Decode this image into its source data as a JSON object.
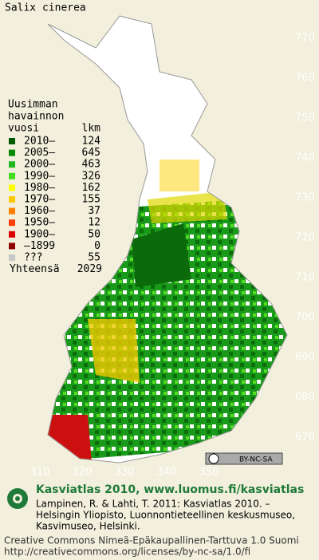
{
  "title": "Salix cinerea",
  "legend": {
    "heading": [
      "Uusimman",
      "havainnon"
    ],
    "columns": [
      "vuosi",
      "lkm"
    ],
    "rows": [
      {
        "label": "2010–",
        "count": 124,
        "color": "#005a00"
      },
      {
        "label": "2005–",
        "count": 645,
        "color": "#008a00"
      },
      {
        "label": "2000–",
        "count": 463,
        "color": "#22b822"
      },
      {
        "label": "1990–",
        "count": 326,
        "color": "#44dd22"
      },
      {
        "label": "1980–",
        "count": 162,
        "color": "#ffff00"
      },
      {
        "label": "1970–",
        "count": 155,
        "color": "#ffc800"
      },
      {
        "label": "1960–",
        "count": 37,
        "color": "#ff8000"
      },
      {
        "label": "1950–",
        "count": 12,
        "color": "#ff4000"
      },
      {
        "label": "1900–",
        "count": 50,
        "color": "#dd0000"
      },
      {
        "label": "–1899",
        "count": 0,
        "color": "#8b0000"
      },
      {
        "label": "???",
        "count": 55,
        "color": "#c8c8c8"
      }
    ],
    "total": {
      "label": "Yhteensä",
      "count": 2029
    }
  },
  "grid": {
    "north": [
      770,
      760,
      750,
      740,
      730,
      720,
      710,
      700,
      690,
      680,
      670
    ],
    "east": [
      310,
      320,
      330,
      340,
      350
    ]
  },
  "license_badge": "BY-NC-SA",
  "credit": {
    "heading": "Kasviatlas 2010, www.luomus.fi/kasviatlas",
    "citation": [
      "Lampinen, R. & Lahti, T. 2011: Kasviatlas 2010. –",
      "Helsingin Yliopisto, Luonnontieteellinen keskusmuseo,",
      "Kasvimuseo, Helsinki."
    ]
  },
  "license": [
    "Creative Commons Nimeä-Epäkaupallinen-Tarttuva 1.0 Suomi",
    "http://creativecommons.org/licenses/by-nc-sa/1.0/fi"
  ]
}
